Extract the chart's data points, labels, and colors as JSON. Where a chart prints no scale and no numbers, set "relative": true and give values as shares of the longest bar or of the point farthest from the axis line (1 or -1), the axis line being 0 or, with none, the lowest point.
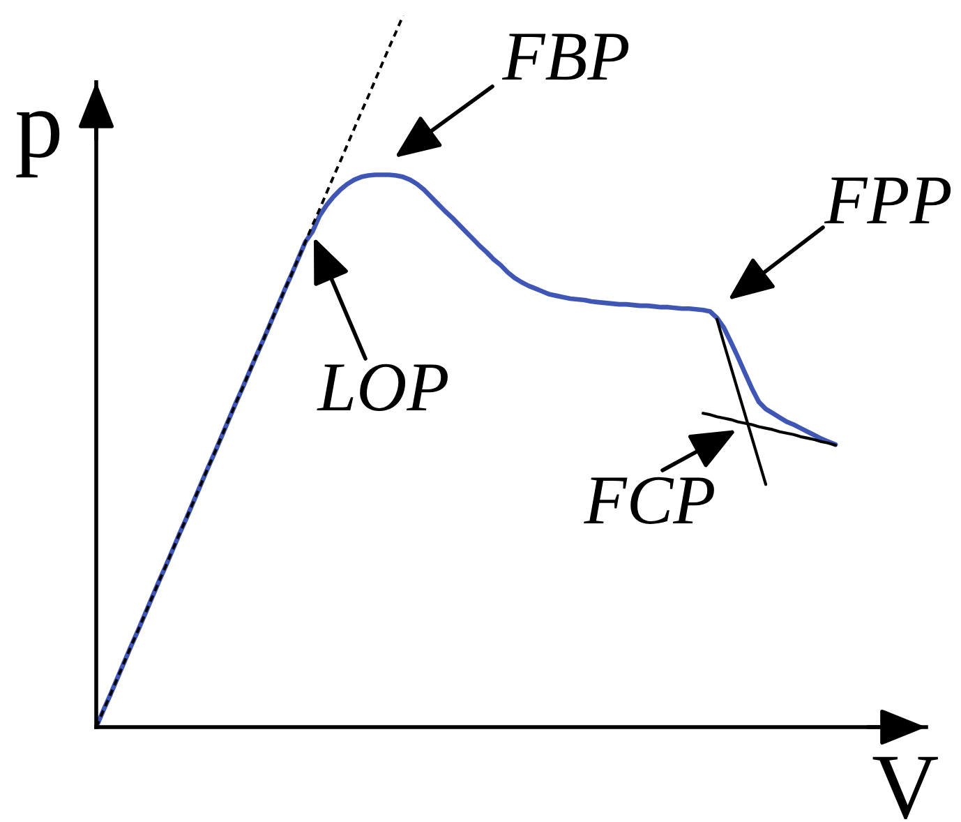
{
  "chart_data": {
    "type": "line",
    "relative": true,
    "xlabel": "V",
    "ylabel": "p",
    "categories": [
      null,
      null,
      null,
      null,
      null,
      null,
      null,
      null,
      null,
      null,
      null,
      null,
      null,
      null,
      null,
      null,
      null,
      null,
      null,
      null,
      null,
      null,
      null,
      null,
      null,
      null,
      null,
      null,
      null,
      null,
      null,
      null,
      null,
      null,
      null,
      null,
      null,
      null,
      null,
      null,
      null,
      null,
      null,
      null,
      null,
      null,
      null,
      null,
      null,
      null,
      null,
      null,
      null,
      null,
      null,
      null,
      null,
      null,
      null,
      null,
      null,
      null,
      null,
      null,
      null,
      null,
      null,
      null,
      null,
      null,
      null,
      null,
      null,
      null,
      null,
      null,
      null,
      null,
      null,
      null,
      null,
      null,
      null,
      null,
      null,
      null,
      null,
      null,
      null,
      null,
      null,
      null,
      null,
      null,
      null,
      null,
      null,
      null,
      null,
      null,
      null,
      null,
      null,
      null,
      null,
      null,
      null
    ],
    "series": [
      {
        "color": "#4056b4",
        "line_style": "solid",
        "values": [
          0,
          0.023,
          0.045,
          0.068,
          0.091,
          0.114,
          0.136,
          0.159,
          0.182,
          0.205,
          0.227,
          0.25,
          0.273,
          0.295,
          0.318,
          0.341,
          0.364,
          0.386,
          0.409,
          0.432,
          0.455,
          0.477,
          0.5,
          0.523,
          0.545,
          0.568,
          0.591,
          0.614,
          0.636,
          0.659,
          0.682,
          0.696,
          0.718,
          0.733,
          0.745,
          0.755,
          0.763,
          0.769,
          0.773,
          0.775,
          0.776,
          0.776,
          0.776,
          0.775,
          0.773,
          0.769,
          0.763,
          0.755,
          0.745,
          0.735,
          0.725,
          0.716,
          0.706,
          0.696,
          0.686,
          0.676,
          0.667,
          0.657,
          0.649,
          0.639,
          0.631,
          0.625,
          0.62,
          0.616,
          0.612,
          0.608,
          0.606,
          0.604,
          0.602,
          0.601,
          0.6,
          0.598,
          0.597,
          0.596,
          0.595,
          0.594,
          0.594,
          0.593,
          0.592,
          0.592,
          0.591,
          0.59,
          0.59,
          0.589,
          0.588,
          0.588,
          0.587,
          0.586,
          0.584,
          0.575,
          0.561,
          0.541,
          0.52,
          0.498,
          0.476,
          0.457,
          0.447,
          0.441,
          0.435,
          0.429,
          0.425,
          0.42,
          0.415,
          0.41,
          0.405,
          0.401,
          0.397
        ]
      },
      {
        "color": "#000000",
        "line_style": "dashed",
        "values": [
          0,
          0.023,
          0.045,
          0.068,
          0.091,
          0.114,
          0.136,
          0.159,
          0.182,
          0.205,
          0.227,
          0.25,
          0.273,
          0.295,
          0.318,
          0.341,
          0.364,
          0.386,
          0.409,
          0.432,
          0.455,
          0.477,
          0.5,
          0.523,
          0.545,
          0.568,
          0.591,
          0.614,
          0.636,
          0.659,
          0.682,
          0.705,
          0.727,
          0.75,
          0.773,
          0.795,
          0.818,
          0.841,
          0.864,
          0.886,
          0.909,
          0.932,
          0.955,
          0.977,
          1,
          null,
          null,
          null,
          null,
          null,
          null,
          null,
          null,
          null,
          null,
          null,
          null,
          null,
          null,
          null,
          null,
          null,
          null,
          null,
          null,
          null,
          null,
          null,
          null,
          null,
          null,
          null,
          null,
          null,
          null,
          null,
          null,
          null,
          null,
          null,
          null,
          null,
          null,
          null,
          null,
          null,
          null,
          null,
          null,
          null,
          null,
          null,
          null,
          null,
          null,
          null,
          null,
          null,
          null,
          null,
          null,
          null,
          null,
          null,
          null,
          null,
          null
        ]
      },
      {
        "color": "#000000",
        "line_style": "solid",
        "values": [
          null,
          null,
          null,
          null,
          null,
          null,
          null,
          null,
          null,
          null,
          null,
          null,
          null,
          null,
          null,
          null,
          null,
          null,
          null,
          null,
          null,
          null,
          null,
          null,
          null,
          null,
          null,
          null,
          null,
          null,
          null,
          null,
          null,
          null,
          null,
          null,
          null,
          null,
          null,
          null,
          null,
          null,
          null,
          null,
          null,
          null,
          null,
          null,
          null,
          null,
          null,
          null,
          null,
          null,
          null,
          null,
          null,
          null,
          null,
          null,
          null,
          null,
          null,
          null,
          null,
          null,
          null,
          null,
          null,
          null,
          null,
          null,
          null,
          null,
          null,
          null,
          null,
          null,
          null,
          null,
          null,
          null,
          null,
          null,
          null,
          null,
          null,
          null,
          null,
          0.573,
          0.539,
          0.506,
          0.473,
          0.44,
          0.407,
          0.374,
          0.341,
          null,
          null,
          null,
          null,
          null,
          null,
          null,
          null,
          null,
          null
        ]
      },
      {
        "color": "#000000",
        "line_style": "solid",
        "values": [
          null,
          null,
          null,
          null,
          null,
          null,
          null,
          null,
          null,
          null,
          null,
          null,
          null,
          null,
          null,
          null,
          null,
          null,
          null,
          null,
          null,
          null,
          null,
          null,
          null,
          null,
          null,
          null,
          null,
          null,
          null,
          null,
          null,
          null,
          null,
          null,
          null,
          null,
          null,
          null,
          null,
          null,
          null,
          null,
          null,
          null,
          null,
          null,
          null,
          null,
          null,
          null,
          null,
          null,
          null,
          null,
          null,
          null,
          null,
          null,
          null,
          null,
          null,
          null,
          null,
          null,
          null,
          null,
          null,
          null,
          null,
          null,
          null,
          null,
          null,
          null,
          null,
          null,
          null,
          null,
          null,
          null,
          null,
          null,
          null,
          null,
          null,
          0.441,
          0.439,
          0.436,
          0.434,
          0.432,
          0.429,
          0.427,
          0.425,
          0.422,
          0.42,
          0.418,
          0.415,
          0.413,
          0.411,
          0.408,
          0.406,
          0.404,
          0.401,
          0.399,
          0.396
        ]
      }
    ],
    "annotations": [
      "FBP",
      "FPP",
      "LOP",
      "FCP"
    ]
  }
}
